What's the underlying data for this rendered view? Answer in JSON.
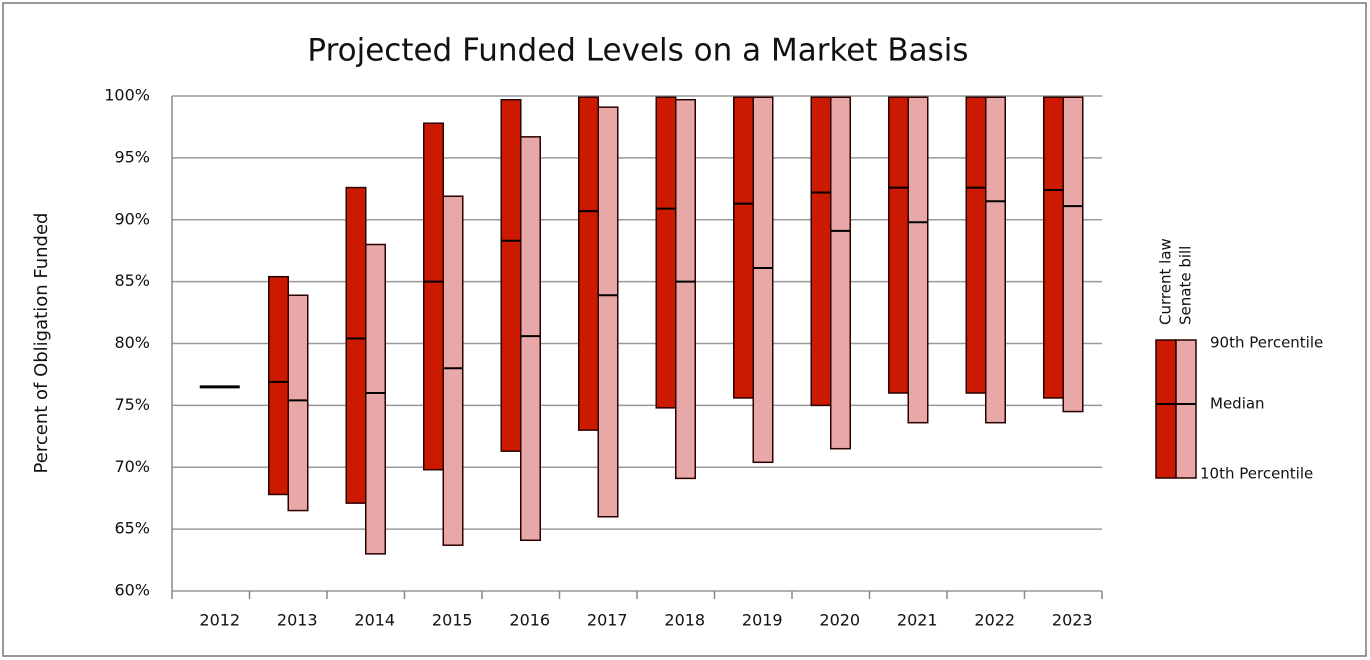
{
  "chart_data": {
    "type": "floating-box",
    "title": "Projected Funded Levels on a Market Basis",
    "y_label": "Percent of Obligation Funded",
    "categories": [
      "2012",
      "2013",
      "2014",
      "2015",
      "2016",
      "2017",
      "2018",
      "2019",
      "2020",
      "2021",
      "2022",
      "2023"
    ],
    "series": [
      {
        "name": "Current law",
        "color": "#cc1a00",
        "low": [
          null,
          67.8,
          67.1,
          69.8,
          71.3,
          73.0,
          74.8,
          75.6,
          75.0,
          76.0,
          76.0,
          75.6
        ],
        "median": [
          76.5,
          76.9,
          80.4,
          85.0,
          88.3,
          90.7,
          90.9,
          91.3,
          92.2,
          92.6,
          92.6,
          92.4
        ],
        "high": [
          null,
          85.4,
          92.6,
          97.8,
          99.7,
          99.9,
          99.9,
          99.9,
          99.9,
          99.9,
          99.9,
          99.9
        ]
      },
      {
        "name": "Senate bill",
        "color": "#e8a8a8",
        "low": [
          null,
          66.5,
          63.0,
          63.7,
          64.1,
          66.0,
          69.1,
          70.4,
          71.5,
          73.6,
          73.6,
          74.5
        ],
        "median": [
          null,
          75.4,
          76.0,
          78.0,
          80.6,
          83.9,
          85.0,
          86.1,
          89.1,
          89.8,
          91.5,
          91.1
        ],
        "high": [
          null,
          83.9,
          88.0,
          91.9,
          96.7,
          99.1,
          99.7,
          99.9,
          99.9,
          99.9,
          99.9,
          99.9
        ]
      }
    ],
    "legend_labels": {
      "high": "90th Percentile",
      "median": "Median",
      "low": "10th Percentile"
    },
    "ylim": [
      60,
      100
    ],
    "yticks": [
      {
        "value": 60,
        "label": "60%"
      },
      {
        "value": 65,
        "label": "65%"
      },
      {
        "value": 70,
        "label": "70%"
      },
      {
        "value": 75,
        "label": "75%"
      },
      {
        "value": 80,
        "label": "80%"
      },
      {
        "value": 85,
        "label": "85%"
      },
      {
        "value": 90,
        "label": "90%"
      },
      {
        "value": 95,
        "label": "95%"
      },
      {
        "value": 100,
        "label": "100%"
      }
    ],
    "grid": true,
    "legend": "right"
  }
}
